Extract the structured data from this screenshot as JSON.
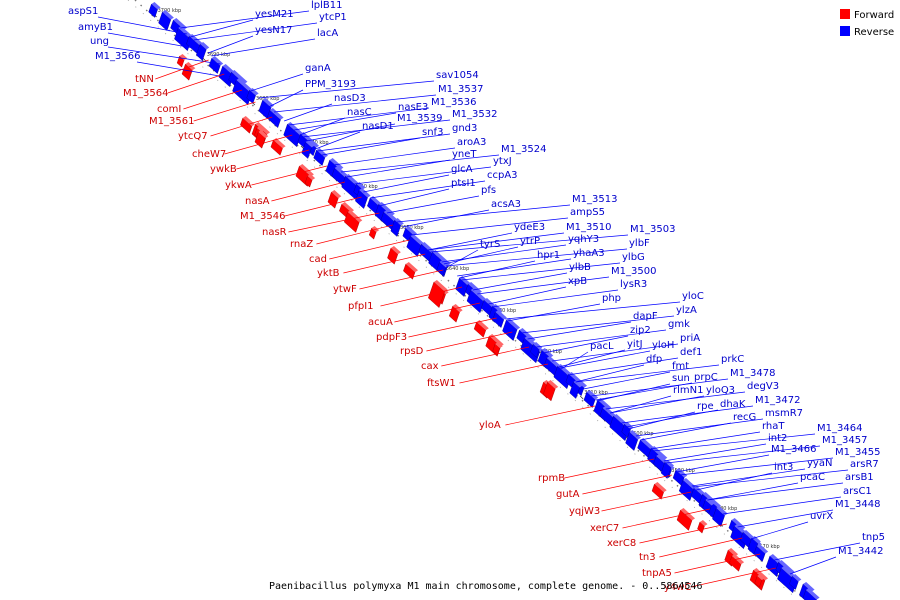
{
  "colors": {
    "forward": "#ff0000",
    "reverse": "#0000ff",
    "backbone": "#555555",
    "forward_label": "#cc0000",
    "reverse_label": "#0000cc"
  },
  "legend": {
    "forward": "Forward",
    "reverse": "Reverse"
  },
  "caption": "Paenibacillus polymyxa M1 main chromosome, complete genome. - 0..5864546",
  "axis_ticks": [
    "3700 kbp",
    "3690 kbp",
    "3680 kbp",
    "3670 kbp",
    "3660 kbp",
    "3650 kbp",
    "3640 kbp",
    "3630 kbp",
    "3620 kbp",
    "3610 kbp",
    "3600 kbp",
    "3590 kbp",
    "3580 kbp",
    "3570 kbp"
  ],
  "forward_labels": [
    "tNN",
    "M1_3564",
    "comI",
    "M1_3561",
    "ytcQ7",
    "cheW7",
    "ywkB",
    "ykwA",
    "nasA",
    "M1_3546",
    "nasR",
    "rnaZ",
    "cad",
    "yktB",
    "ytwF",
    "pfpI1",
    "acuA",
    "pdpF3",
    "rpsD",
    "cax",
    "ftsW1",
    "yloA",
    "rpmB",
    "gutA",
    "yqjW3",
    "xerC7",
    "xerC8",
    "tn3",
    "tnpA5",
    "y4wC"
  ],
  "reverse_labels": [
    "aspS1",
    "amyB1",
    "ung",
    "M1_3566",
    "yesM21",
    "yesN17",
    "lplB11",
    "ytcP1",
    "lacA",
    "ganA",
    "PPM_3193",
    "nasD3",
    "nasC",
    "nasD1",
    "nasE3",
    "M1_3539",
    "M1_3536",
    "M1_3537",
    "sav1054",
    "snf3",
    "M1_3532",
    "gnd3",
    "aroA3",
    "yneT",
    "glcA",
    "ptsI1",
    "ytxJ",
    "ccpA3",
    "pfs",
    "M1_3524",
    "acsA3",
    "tyrS",
    "ydeE3",
    "ytrP",
    "hpr1",
    "ampS5",
    "M1_3513",
    "M1_3510",
    "yqhY3",
    "yhaA3",
    "ylbB",
    "xpB",
    "M1_3503",
    "ylbF",
    "ylbG",
    "M1_3500",
    "lysR3",
    "php",
    "pacL",
    "dapF",
    "zip2",
    "yitJ",
    "dfp",
    "yloC",
    "ylzA",
    "gmk",
    "yloH",
    "priA",
    "fmt",
    "def1",
    "sun",
    "prpC",
    "rlmN1",
    "yloQ3",
    "prkC",
    "M1_3478",
    "degV3",
    "rpe",
    "dhaK",
    "recG",
    "M1_3472",
    "msmR7",
    "rhaT",
    "int2",
    "M1_3466",
    "int3",
    "yyaN",
    "pcaC",
    "M1_3464",
    "M1_3457",
    "M1_3455",
    "arsR7",
    "arsB1",
    "arsC1",
    "M1_3448",
    "uvrX",
    "tnp5",
    "M1_3442"
  ]
}
